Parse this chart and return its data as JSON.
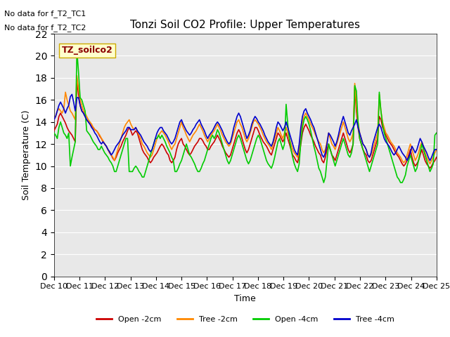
{
  "title": "Tonzi Soil CO2 Profile: Upper Temperatures",
  "xlabel": "Time",
  "ylabel": "Soil Temperature (C)",
  "ylim": [
    0,
    22
  ],
  "xlim": [
    0,
    360
  ],
  "background_color": "#ffffff",
  "plot_bg_color": "#e8e8e8",
  "no_data_text": [
    "No data for f_T2_TC1",
    "No data for f_T2_TC2"
  ],
  "legend_box_label": "TZ_soilco2",
  "legend_box_color": "#ffffcc",
  "legend_box_edge": "#ccaa00",
  "xtick_labels": [
    "Dec 10",
    "Dec 11",
    "Dec 12",
    "Dec 13",
    "Dec 14",
    "Dec 15",
    "Dec 16",
    "Dec 17",
    "Dec 18",
    "Dec 19",
    "Dec 20",
    "Dec 21",
    "Dec 22",
    "Dec 23",
    "Dec 24",
    "Dec 25"
  ],
  "series": {
    "open_2cm": {
      "color": "#cc0000",
      "label": "Open -2cm",
      "values": [
        13.2,
        13.5,
        13.8,
        14.5,
        14.8,
        14.5,
        14.2,
        13.9,
        13.5,
        13.2,
        13.0,
        12.8,
        12.5,
        12.2,
        17.8,
        16.5,
        15.5,
        15.0,
        14.8,
        14.5,
        14.2,
        14.0,
        13.8,
        13.6,
        13.5,
        13.3,
        13.2,
        13.0,
        12.7,
        12.5,
        12.2,
        12.0,
        11.8,
        11.5,
        11.2,
        11.0,
        10.7,
        10.5,
        10.8,
        11.2,
        11.5,
        11.8,
        12.2,
        12.5,
        12.8,
        13.2,
        13.5,
        13.2,
        12.8,
        13.0,
        13.2,
        13.0,
        12.5,
        12.0,
        11.5,
        11.2,
        11.0,
        10.8,
        10.5,
        10.3,
        10.5,
        10.8,
        11.0,
        11.2,
        11.5,
        11.8,
        12.0,
        11.8,
        11.5,
        11.2,
        11.0,
        10.5,
        10.3,
        10.5,
        10.8,
        11.5,
        12.0,
        12.3,
        12.5,
        12.0,
        11.8,
        11.5,
        11.2,
        11.0,
        11.2,
        11.5,
        11.8,
        12.0,
        12.2,
        12.5,
        12.5,
        12.3,
        12.0,
        11.8,
        11.5,
        11.5,
        11.8,
        12.0,
        12.2,
        12.5,
        12.8,
        12.5,
        12.2,
        11.8,
        11.5,
        11.2,
        11.0,
        10.8,
        11.0,
        11.5,
        12.0,
        12.5,
        13.0,
        13.3,
        13.0,
        12.5,
        12.0,
        11.5,
        11.2,
        11.5,
        12.0,
        12.5,
        13.0,
        13.5,
        13.5,
        13.2,
        12.8,
        12.5,
        12.2,
        12.0,
        11.8,
        11.5,
        11.2,
        11.0,
        11.5,
        12.0,
        12.5,
        13.0,
        12.8,
        12.5,
        12.2,
        12.5,
        13.0,
        12.5,
        12.0,
        11.5,
        11.0,
        10.8,
        10.5,
        10.3,
        11.0,
        12.0,
        13.0,
        13.5,
        13.8,
        13.5,
        13.2,
        12.8,
        12.5,
        12.2,
        11.8,
        11.5,
        11.2,
        11.0,
        10.5,
        10.3,
        10.8,
        11.5,
        12.0,
        11.5,
        11.0,
        10.8,
        10.5,
        11.0,
        11.5,
        12.0,
        12.5,
        13.0,
        12.5,
        12.0,
        11.5,
        11.2,
        11.5,
        12.0,
        17.2,
        15.0,
        13.5,
        12.5,
        12.0,
        11.5,
        11.2,
        11.0,
        10.5,
        10.3,
        10.5,
        11.0,
        11.5,
        12.0,
        12.5,
        14.5,
        14.2,
        13.5,
        13.2,
        12.8,
        12.5,
        12.2,
        12.0,
        11.8,
        11.5,
        11.2,
        11.0,
        10.8,
        10.5,
        10.2,
        10.0,
        10.2,
        10.5,
        11.0,
        11.5,
        10.8,
        10.3,
        10.0,
        10.2,
        10.5,
        11.0,
        11.5,
        11.0,
        10.5,
        10.2,
        10.0,
        9.8,
        10.0,
        10.3,
        10.5,
        10.8
      ]
    },
    "tree_2cm": {
      "color": "#ff8800",
      "label": "Tree -2cm",
      "values": [
        14.2,
        14.5,
        15.0,
        15.2,
        15.0,
        14.8,
        15.2,
        16.7,
        16.0,
        15.5,
        15.0,
        14.8,
        14.5,
        14.2,
        18.2,
        17.0,
        16.0,
        15.5,
        15.0,
        14.8,
        14.5,
        14.2,
        14.0,
        13.8,
        13.5,
        13.3,
        13.2,
        13.0,
        12.8,
        12.5,
        12.3,
        12.0,
        11.8,
        11.5,
        11.3,
        11.0,
        10.8,
        10.5,
        11.0,
        11.5,
        12.0,
        12.5,
        13.0,
        13.5,
        13.8,
        14.0,
        14.2,
        13.8,
        13.5,
        13.3,
        13.5,
        13.2,
        12.8,
        12.5,
        12.0,
        11.8,
        11.5,
        11.2,
        11.0,
        10.8,
        11.0,
        11.5,
        12.0,
        12.5,
        12.8,
        13.0,
        13.2,
        13.0,
        12.8,
        12.5,
        12.2,
        11.8,
        11.5,
        11.8,
        12.0,
        12.5,
        13.0,
        13.5,
        14.0,
        13.5,
        13.2,
        12.8,
        12.5,
        12.2,
        12.5,
        12.8,
        13.0,
        13.2,
        13.5,
        13.8,
        13.5,
        13.2,
        12.8,
        12.5,
        12.2,
        12.5,
        12.8,
        13.0,
        13.2,
        13.5,
        13.8,
        13.5,
        13.2,
        12.8,
        12.5,
        12.2,
        12.0,
        11.8,
        12.0,
        12.5,
        13.0,
        13.5,
        14.0,
        14.2,
        13.8,
        13.5,
        13.0,
        12.5,
        12.2,
        12.5,
        13.0,
        13.5,
        14.0,
        14.2,
        14.0,
        13.8,
        13.5,
        13.2,
        12.8,
        12.5,
        12.2,
        12.0,
        11.8,
        11.5,
        12.0,
        12.5,
        13.0,
        13.5,
        13.2,
        12.8,
        12.5,
        13.0,
        13.5,
        13.0,
        12.5,
        12.0,
        11.5,
        11.2,
        11.0,
        10.8,
        11.5,
        13.0,
        14.0,
        14.5,
        14.8,
        14.5,
        14.2,
        13.8,
        13.5,
        13.2,
        12.8,
        12.5,
        12.2,
        12.0,
        11.5,
        11.2,
        11.5,
        12.2,
        13.0,
        12.5,
        12.0,
        11.8,
        11.5,
        12.0,
        12.5,
        13.0,
        13.5,
        14.0,
        13.5,
        13.0,
        12.5,
        12.2,
        12.5,
        13.0,
        17.5,
        15.5,
        14.0,
        13.0,
        12.5,
        12.0,
        11.8,
        11.5,
        11.0,
        10.8,
        11.0,
        11.5,
        12.0,
        12.5,
        13.0,
        16.5,
        15.0,
        14.0,
        13.5,
        13.0,
        12.8,
        12.5,
        12.2,
        12.0,
        11.8,
        11.5,
        11.2,
        11.0,
        10.8,
        10.5,
        10.3,
        10.5,
        11.0,
        11.5,
        12.0,
        11.5,
        11.0,
        10.5,
        10.8,
        11.2,
        11.8,
        12.2,
        11.8,
        11.2,
        10.8,
        10.5,
        10.2,
        10.5,
        10.8,
        11.2,
        11.5
      ]
    },
    "open_4cm": {
      "color": "#00cc00",
      "label": "Open -4cm",
      "values": [
        13.0,
        12.8,
        12.5,
        13.5,
        14.0,
        13.5,
        13.0,
        12.8,
        12.5,
        13.0,
        10.0,
        10.8,
        11.5,
        12.2,
        20.5,
        18.5,
        16.2,
        16.0,
        15.5,
        15.0,
        13.2,
        13.0,
        12.8,
        12.5,
        12.2,
        12.0,
        11.8,
        11.5,
        11.5,
        11.8,
        11.5,
        11.2,
        11.0,
        10.8,
        10.5,
        10.3,
        10.0,
        9.5,
        9.5,
        10.0,
        10.5,
        11.0,
        11.5,
        12.0,
        12.5,
        12.5,
        9.5,
        9.5,
        9.5,
        9.8,
        10.0,
        9.8,
        9.5,
        9.3,
        9.0,
        9.0,
        9.5,
        10.0,
        10.5,
        11.0,
        11.5,
        12.0,
        12.5,
        12.5,
        12.8,
        12.5,
        12.8,
        12.5,
        12.2,
        11.8,
        11.5,
        11.2,
        10.8,
        10.5,
        9.5,
        9.5,
        9.8,
        10.2,
        10.5,
        11.0,
        11.5,
        12.0,
        11.5,
        11.0,
        10.8,
        10.5,
        10.2,
        9.8,
        9.5,
        9.5,
        9.8,
        10.2,
        10.5,
        11.0,
        11.5,
        12.0,
        12.5,
        12.8,
        12.5,
        12.8,
        13.3,
        13.0,
        12.5,
        12.0,
        11.5,
        11.0,
        10.5,
        10.2,
        10.5,
        11.0,
        11.5,
        12.0,
        12.5,
        12.8,
        12.5,
        12.0,
        11.5,
        11.0,
        10.5,
        10.2,
        10.5,
        11.0,
        11.5,
        12.0,
        12.5,
        12.8,
        12.5,
        12.0,
        11.5,
        11.0,
        10.5,
        10.2,
        10.0,
        9.8,
        10.2,
        10.8,
        11.5,
        12.2,
        12.5,
        12.0,
        11.5,
        12.0,
        15.6,
        13.8,
        12.5,
        11.5,
        10.8,
        10.2,
        9.8,
        9.5,
        10.2,
        12.2,
        13.5,
        14.2,
        14.5,
        14.2,
        13.8,
        13.2,
        12.5,
        11.8,
        11.2,
        10.5,
        9.8,
        9.5,
        9.0,
        8.5,
        9.0,
        10.5,
        12.0,
        11.5,
        11.0,
        10.5,
        10.0,
        10.5,
        11.0,
        11.5,
        12.0,
        12.5,
        12.0,
        11.5,
        11.0,
        10.8,
        11.2,
        12.0,
        17.3,
        16.8,
        14.0,
        12.5,
        12.0,
        11.5,
        11.0,
        10.5,
        10.0,
        9.5,
        10.0,
        10.5,
        11.0,
        11.5,
        12.0,
        16.7,
        15.0,
        13.8,
        13.0,
        12.5,
        12.0,
        11.5,
        11.0,
        10.5,
        10.0,
        9.5,
        9.0,
        8.8,
        8.5,
        8.5,
        8.8,
        9.2,
        10.0,
        10.5,
        11.0,
        10.5,
        10.0,
        9.5,
        9.8,
        10.5,
        11.2,
        12.0,
        11.5,
        11.0,
        10.5,
        10.0,
        9.5,
        9.8,
        10.2,
        12.8,
        13.0
      ]
    },
    "tree_4cm": {
      "color": "#0000cc",
      "label": "Tree -4cm",
      "values": [
        14.2,
        14.5,
        15.0,
        15.5,
        15.8,
        15.5,
        15.2,
        14.8,
        15.2,
        15.5,
        16.3,
        16.5,
        15.8,
        15.0,
        16.2,
        16.2,
        15.5,
        15.0,
        14.8,
        14.5,
        14.2,
        14.0,
        13.8,
        13.5,
        13.3,
        13.0,
        12.8,
        12.5,
        12.2,
        12.0,
        12.2,
        12.0,
        11.8,
        11.5,
        11.3,
        11.0,
        11.2,
        11.5,
        11.8,
        12.0,
        12.2,
        12.5,
        12.8,
        13.0,
        13.2,
        13.5,
        13.5,
        13.3,
        13.3,
        13.3,
        13.5,
        13.2,
        13.0,
        12.8,
        12.5,
        12.2,
        12.0,
        11.8,
        11.5,
        11.3,
        11.5,
        12.0,
        12.5,
        13.0,
        13.3,
        13.5,
        13.5,
        13.2,
        13.0,
        12.8,
        12.5,
        12.2,
        12.0,
        12.2,
        12.5,
        13.0,
        13.5,
        14.0,
        14.2,
        13.8,
        13.5,
        13.2,
        13.0,
        12.8,
        13.0,
        13.3,
        13.5,
        13.8,
        14.0,
        14.2,
        13.8,
        13.5,
        13.2,
        12.8,
        12.5,
        12.8,
        13.0,
        13.2,
        13.5,
        13.8,
        14.0,
        13.8,
        13.5,
        13.2,
        12.8,
        12.5,
        12.2,
        12.0,
        12.2,
        12.8,
        13.5,
        14.0,
        14.5,
        14.8,
        14.5,
        14.0,
        13.5,
        13.0,
        12.5,
        12.8,
        13.2,
        13.8,
        14.2,
        14.5,
        14.3,
        14.0,
        13.8,
        13.5,
        13.2,
        12.8,
        12.5,
        12.2,
        12.0,
        11.8,
        12.2,
        12.8,
        13.5,
        14.0,
        13.8,
        13.5,
        13.2,
        13.5,
        14.0,
        13.5,
        13.0,
        12.5,
        12.0,
        11.5,
        11.2,
        11.0,
        12.0,
        13.5,
        14.5,
        15.0,
        15.2,
        14.8,
        14.5,
        14.2,
        13.8,
        13.5,
        13.0,
        12.5,
        12.0,
        11.5,
        11.0,
        10.8,
        11.2,
        12.0,
        13.0,
        12.8,
        12.5,
        12.2,
        11.8,
        12.2,
        12.8,
        13.5,
        14.0,
        14.5,
        14.0,
        13.5,
        13.0,
        12.8,
        13.2,
        13.5,
        13.8,
        14.2,
        13.5,
        13.0,
        12.5,
        12.0,
        11.8,
        11.5,
        11.0,
        10.8,
        11.2,
        12.0,
        12.5,
        13.0,
        13.5,
        13.8,
        13.5,
        13.0,
        12.5,
        12.2,
        12.0,
        11.8,
        11.5,
        11.2,
        11.0,
        11.2,
        11.5,
        11.8,
        11.5,
        11.2,
        11.0,
        10.8,
        10.5,
        10.8,
        11.2,
        11.8,
        11.5,
        11.2,
        11.5,
        12.0,
        12.5,
        12.2,
        11.8,
        11.5,
        11.2,
        10.8,
        10.5,
        10.8,
        11.2,
        11.5,
        11.5
      ]
    }
  }
}
